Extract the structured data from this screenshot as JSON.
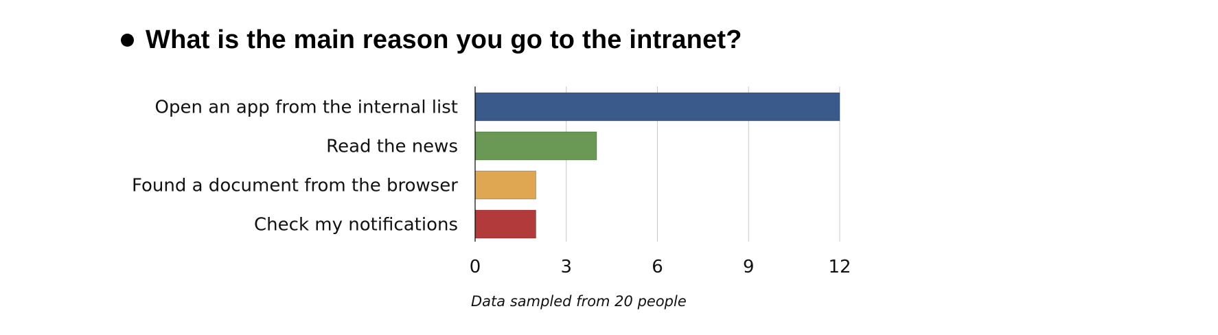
{
  "question": {
    "text": "What is the main reason you go to the intranet?"
  },
  "chart_data": {
    "type": "bar",
    "orientation": "horizontal",
    "categories": [
      "Open an app from the internal list",
      "Read the news",
      "Found a document from the browser",
      "Check my notifications"
    ],
    "values": [
      12,
      4,
      2,
      2
    ],
    "colors": [
      "#3a5a8c",
      "#6a9955",
      "#e0a752",
      "#b33a3a"
    ],
    "xticks": [
      0,
      3,
      6,
      9,
      12
    ],
    "xlim": [
      0,
      12
    ],
    "grid": true,
    "footnote": "Data sampled from 20 people"
  }
}
